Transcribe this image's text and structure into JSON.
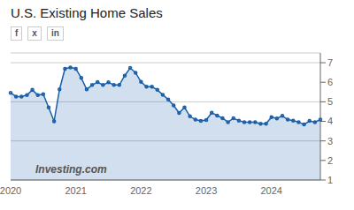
{
  "chart_data": {
    "type": "area",
    "title": "U.S. Existing Home Sales",
    "annotations": [
      "f",
      "x",
      "in",
      "Investing.com"
    ],
    "categories": [
      "2020",
      null,
      null,
      null,
      null,
      null,
      null,
      null,
      null,
      null,
      null,
      null,
      "2021",
      null,
      null,
      null,
      null,
      null,
      null,
      null,
      null,
      null,
      null,
      null,
      "2022",
      null,
      null,
      null,
      null,
      null,
      null,
      null,
      null,
      null,
      null,
      null,
      "2023",
      null,
      null,
      null,
      null,
      null,
      null,
      null,
      null,
      null,
      null,
      null,
      "2024",
      null,
      null,
      null,
      null,
      null,
      null,
      null,
      null,
      null
    ],
    "values": [
      5.46,
      5.27,
      5.27,
      5.34,
      5.61,
      5.34,
      5.39,
      4.71,
      4.0,
      5.64,
      6.69,
      6.76,
      6.69,
      6.22,
      5.64,
      5.86,
      6.01,
      5.86,
      6.0,
      5.86,
      5.86,
      6.34,
      6.73,
      6.49,
      6.02,
      5.77,
      5.77,
      5.61,
      5.36,
      5.12,
      4.81,
      4.43,
      4.71,
      4.26,
      4.09,
      4.02,
      4.07,
      4.44,
      4.3,
      4.16,
      3.96,
      4.16,
      4.04,
      3.96,
      3.96,
      3.96,
      3.88,
      3.88,
      4.22,
      4.15,
      4.28,
      4.09,
      4.04,
      3.96,
      3.84,
      4.02,
      3.96,
      4.09
    ],
    "color": "#1a5fa8",
    "marker": "circle",
    "ylim": [
      1,
      7.5
    ],
    "yticks": [
      1,
      2,
      3,
      4,
      5,
      6,
      7
    ],
    "grid": true
  }
}
